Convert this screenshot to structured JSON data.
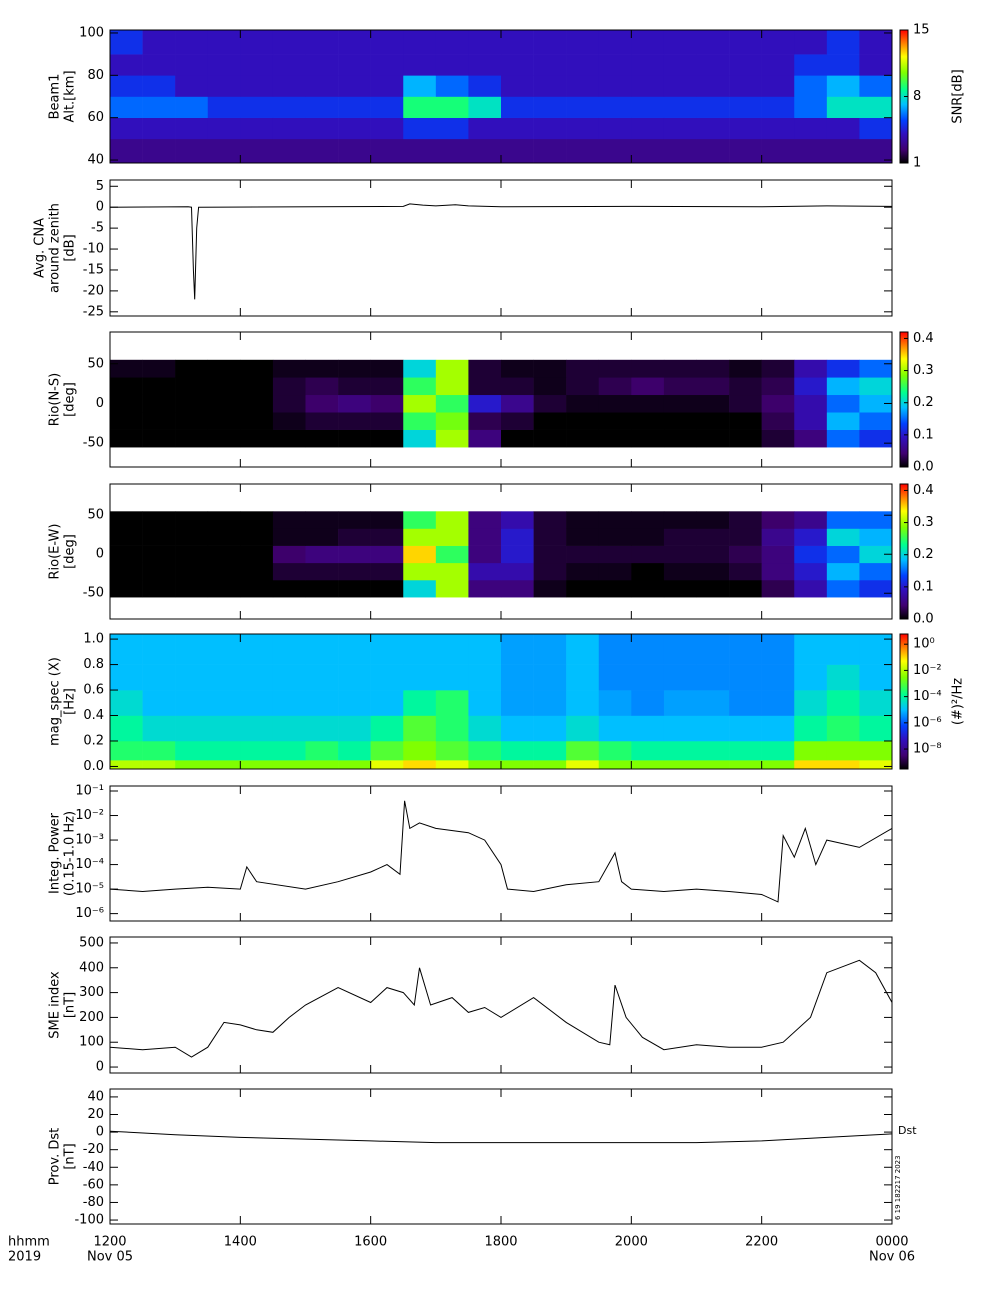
{
  "chart_data": [
    {
      "type": "heatmap",
      "ylabel": [
        "Beam1",
        "Alt.[km]"
      ],
      "xlim": [
        12,
        24
      ],
      "xticks": [
        12,
        14,
        16,
        18,
        20,
        22,
        24
      ],
      "ylim": [
        38.6,
        101.4
      ],
      "yticks": [
        40,
        60,
        80,
        100
      ],
      "colormap": "rainbow",
      "x_bins": [
        12,
        12.5,
        13,
        13.5,
        14,
        14.5,
        15,
        15.5,
        16,
        16.5,
        17,
        17.5,
        18,
        18.5,
        19,
        19.5,
        20,
        20.5,
        21,
        21.5,
        22,
        22.5,
        23,
        23.5,
        24
      ],
      "y_bins": [
        38.6,
        50,
        60,
        70,
        80,
        90,
        101.4
      ],
      "z": [
        [
          3,
          3,
          3,
          3,
          3,
          3,
          3,
          3,
          3,
          3,
          3,
          3,
          3,
          3,
          3,
          3,
          3,
          3,
          3,
          3,
          3,
          3,
          3,
          3
        ],
        [
          4,
          4,
          4,
          4,
          4,
          4,
          4,
          4,
          4,
          5,
          5,
          4,
          4,
          4,
          4,
          4,
          4,
          4,
          4,
          4,
          4,
          4,
          4,
          5
        ],
        [
          6,
          6,
          6,
          5,
          5,
          5,
          5,
          5,
          5,
          9,
          9,
          8,
          5,
          5,
          5,
          5,
          5,
          5,
          5,
          5,
          5,
          6,
          8,
          8
        ],
        [
          5,
          5,
          4,
          4,
          4,
          4,
          4,
          4,
          4,
          7,
          6,
          5,
          4,
          4,
          4,
          4,
          4,
          4,
          4,
          4,
          4,
          6,
          7,
          6
        ],
        [
          4,
          4,
          4,
          4,
          4,
          4,
          4,
          4,
          4,
          4,
          4,
          4,
          4,
          4,
          4,
          4,
          4,
          4,
          4,
          4,
          4,
          5,
          5,
          4
        ],
        [
          5,
          4,
          4,
          4,
          4,
          4,
          4,
          4,
          4,
          4,
          4,
          4,
          4,
          4,
          4,
          4,
          4,
          4,
          4,
          4,
          4,
          4,
          5,
          4
        ]
      ],
      "colorbar": {
        "label": "SNR[dB]",
        "lim": [
          1,
          15
        ],
        "ticks": [
          1,
          8,
          15
        ],
        "log": false
      }
    },
    {
      "type": "line",
      "ylabel": [
        "Avg. CNA",
        "around zenith",
        "[dB]"
      ],
      "xlim": [
        12,
        24
      ],
      "xticks": [
        12,
        14,
        16,
        18,
        20,
        22,
        24
      ],
      "ylim": [
        -26,
        6.5
      ],
      "yticks": [
        5,
        0,
        -5,
        -10,
        -15,
        -20,
        -25
      ],
      "color": "#000000",
      "x": [
        12,
        13.2,
        13.25,
        13.28,
        13.3,
        13.33,
        13.36,
        16.5,
        16.6,
        16.8,
        17,
        17.3,
        17.5,
        18,
        20,
        22,
        23,
        24
      ],
      "values": [
        0,
        0.1,
        0,
        -15,
        -22,
        -5,
        0,
        0.2,
        0.8,
        0.5,
        0.3,
        0.6,
        0.3,
        0.1,
        0.2,
        0.1,
        0.3,
        0.2
      ]
    },
    {
      "type": "heatmap",
      "ylabel": [
        "Rio(N-S)",
        "[deg]"
      ],
      "xlim": [
        12,
        24
      ],
      "xticks": [
        12,
        14,
        16,
        18,
        20,
        22,
        24
      ],
      "ylim": [
        -80,
        90
      ],
      "yticks": [
        -50,
        0,
        50
      ],
      "colormap": "rainbow",
      "x_bins": [
        12,
        12.5,
        13,
        13.5,
        14,
        14.5,
        15,
        15.5,
        16,
        16.5,
        17,
        17.5,
        18,
        18.5,
        19,
        19.5,
        20,
        20.5,
        21,
        21.5,
        22,
        22.5,
        23,
        23.5,
        24
      ],
      "y_bins": [
        -55,
        -33,
        -11,
        11,
        33,
        55
      ],
      "z": [
        [
          0,
          0,
          0,
          0,
          0,
          0,
          0,
          0,
          0,
          0.2,
          0.3,
          0.05,
          0,
          0,
          0,
          0,
          0,
          0,
          0,
          0,
          0.02,
          0.05,
          0.15,
          0.12
        ],
        [
          0,
          0,
          0,
          0,
          0,
          0.01,
          0.02,
          0.02,
          0.02,
          0.25,
          0.28,
          0.03,
          0.02,
          0,
          0,
          0,
          0,
          0,
          0,
          0,
          0.03,
          0.08,
          0.18,
          0.15
        ],
        [
          0,
          0,
          0,
          0,
          0,
          0.02,
          0.04,
          0.05,
          0.04,
          0.3,
          0.25,
          0.1,
          0.06,
          0.02,
          0.01,
          0.01,
          0.01,
          0.01,
          0.01,
          0.02,
          0.04,
          0.08,
          0.15,
          0.18
        ],
        [
          0,
          0,
          0,
          0,
          0,
          0.02,
          0.03,
          0.02,
          0.02,
          0.25,
          0.3,
          0.02,
          0.02,
          0.01,
          0.02,
          0.03,
          0.04,
          0.03,
          0.03,
          0.02,
          0.03,
          0.1,
          0.18,
          0.2
        ],
        [
          0.01,
          0.01,
          0,
          0,
          0,
          0.01,
          0.01,
          0.01,
          0.01,
          0.2,
          0.3,
          0.02,
          0.01,
          0.01,
          0.02,
          0.02,
          0.02,
          0.02,
          0.02,
          0.01,
          0.02,
          0.08,
          0.12,
          0.15
        ]
      ],
      "colorbar": {
        "label": "",
        "lim": [
          0,
          0.42
        ],
        "ticks": [
          {
            "value": 0,
            "label": "0.0"
          },
          0.1,
          0.2,
          0.3,
          0.4
        ],
        "log": false
      }
    },
    {
      "type": "heatmap",
      "ylabel": [
        "Rio(E-W)",
        "[deg]"
      ],
      "xlim": [
        12,
        24
      ],
      "xticks": [
        12,
        14,
        16,
        18,
        20,
        22,
        24
      ],
      "ylim": [
        -83,
        90
      ],
      "yticks": [
        -50,
        0,
        50
      ],
      "colormap": "rainbow",
      "x_bins": [
        12,
        12.5,
        13,
        13.5,
        14,
        14.5,
        15,
        15.5,
        16,
        16.5,
        17,
        17.5,
        18,
        18.5,
        19,
        19.5,
        20,
        20.5,
        21,
        21.5,
        22,
        22.5,
        23,
        23.5,
        24
      ],
      "y_bins": [
        -55,
        -33,
        -11,
        11,
        33,
        55
      ],
      "z": [
        [
          0,
          0,
          0,
          0,
          0,
          0,
          0,
          0,
          0,
          0.2,
          0.3,
          0.05,
          0.05,
          0.01,
          0,
          0,
          0,
          0,
          0,
          0,
          0.03,
          0.08,
          0.15,
          0.12
        ],
        [
          0,
          0,
          0,
          0,
          0,
          0.02,
          0.02,
          0.02,
          0.02,
          0.3,
          0.3,
          0.08,
          0.08,
          0.02,
          0.01,
          0.01,
          0,
          0.01,
          0.01,
          0.02,
          0.05,
          0.1,
          0.18,
          0.15
        ],
        [
          0,
          0,
          0,
          0,
          0,
          0.04,
          0.05,
          0.05,
          0.05,
          0.35,
          0.25,
          0.05,
          0.1,
          0.02,
          0.02,
          0.02,
          0.02,
          0.02,
          0.02,
          0.03,
          0.05,
          0.12,
          0.15,
          0.2
        ],
        [
          0,
          0,
          0,
          0,
          0,
          0.01,
          0.01,
          0.02,
          0.02,
          0.3,
          0.3,
          0.05,
          0.1,
          0.02,
          0.01,
          0.01,
          0.01,
          0.02,
          0.02,
          0.02,
          0.06,
          0.1,
          0.2,
          0.18
        ],
        [
          0,
          0,
          0,
          0,
          0,
          0.01,
          0.01,
          0.01,
          0.01,
          0.25,
          0.3,
          0.05,
          0.08,
          0.02,
          0.01,
          0.01,
          0.01,
          0.01,
          0.01,
          0.02,
          0.04,
          0.06,
          0.15,
          0.15
        ]
      ],
      "colorbar": {
        "label": "",
        "lim": [
          0,
          0.42
        ],
        "ticks": [
          {
            "value": 0,
            "label": "0.0"
          },
          0.1,
          0.2,
          0.3,
          0.4
        ],
        "log": false
      }
    },
    {
      "type": "heatmap",
      "ylabel": [
        "mag_spec (X)",
        "[Hz]"
      ],
      "xlim": [
        12,
        24
      ],
      "xticks": [
        12,
        14,
        16,
        18,
        20,
        22,
        24
      ],
      "ylim": [
        -0.02,
        1.04
      ],
      "yticks": [
        {
          "value": 0,
          "label": "0.0"
        },
        0.2,
        0.4,
        0.6,
        0.8,
        {
          "value": 1,
          "label": "1.0"
        }
      ],
      "colormap": "rainbow",
      "x_bins": [
        12,
        12.5,
        13,
        13.5,
        14,
        14.5,
        15,
        15.5,
        16,
        16.5,
        17,
        17.5,
        18,
        18.5,
        19,
        19.5,
        20,
        20.5,
        21,
        21.5,
        22,
        22.5,
        23,
        23.5,
        24
      ],
      "y_bins": [
        -0.02,
        0.05,
        0.2,
        0.4,
        0.6,
        0.8,
        1.04
      ],
      "z": [
        [
          0.01,
          0.01,
          0.003,
          0.003,
          0.003,
          0.003,
          0.003,
          0.003,
          0.03,
          0.1,
          0.03,
          0.003,
          0.003,
          0.003,
          0.03,
          0.003,
          0.003,
          0.003,
          0.003,
          0.003,
          0.003,
          0.1,
          0.1,
          0.03
        ],
        [
          0.0003,
          0.0003,
          0.0001,
          0.0001,
          0.0001,
          0.0001,
          0.0003,
          0.0001,
          0.001,
          0.003,
          0.001,
          0.0003,
          0.0001,
          0.0001,
          0.001,
          0.0003,
          0.0001,
          0.0001,
          0.0001,
          0.0001,
          0.0001,
          0.003,
          0.003,
          0.003
        ],
        [
          0.0001,
          3e-05,
          3e-05,
          3e-05,
          3e-05,
          3e-05,
          3e-05,
          3e-05,
          0.0001,
          0.001,
          0.0003,
          3e-05,
          1e-05,
          1e-05,
          3e-05,
          1e-05,
          1e-05,
          1e-05,
          1e-05,
          1e-05,
          1e-05,
          0.0001,
          0.0003,
          0.0001
        ],
        [
          3e-05,
          1e-05,
          1e-05,
          1e-05,
          1e-05,
          1e-05,
          1e-05,
          1e-05,
          1e-05,
          0.0001,
          0.0003,
          1e-05,
          5e-06,
          5e-06,
          1e-05,
          5e-06,
          3e-06,
          5e-06,
          5e-06,
          3e-06,
          3e-06,
          3e-05,
          0.0001,
          3e-05
        ],
        [
          1e-05,
          1e-05,
          1e-05,
          1e-05,
          1e-05,
          1e-05,
          1e-05,
          1e-05,
          1e-05,
          1e-05,
          1e-05,
          1e-05,
          5e-06,
          5e-06,
          1e-05,
          3e-06,
          3e-06,
          3e-06,
          3e-06,
          3e-06,
          3e-06,
          1e-05,
          3e-05,
          1e-05
        ],
        [
          1e-05,
          1e-05,
          1e-05,
          1e-05,
          1e-05,
          1e-05,
          1e-05,
          1e-05,
          1e-05,
          1e-05,
          1e-05,
          1e-05,
          5e-06,
          5e-06,
          1e-05,
          3e-06,
          3e-06,
          3e-06,
          3e-06,
          3e-06,
          3e-06,
          1e-05,
          1e-05,
          1e-05
        ]
      ],
      "colorbar": {
        "label": "(#)²/Hz",
        "lim": [
          3e-10,
          6
        ],
        "log": true,
        "ticks": [
          {
            "value": 1,
            "label": "10⁰"
          },
          {
            "value": 0.01,
            "label": "10⁻²"
          },
          {
            "value": 0.0001,
            "label": "10⁻⁴"
          },
          {
            "value": 1e-06,
            "label": "10⁻⁶"
          },
          {
            "value": 1e-08,
            "label": "10⁻⁸"
          }
        ]
      }
    },
    {
      "type": "line",
      "ylabel": [
        "Integ. Power",
        "(0.15-1.0 Hz)"
      ],
      "xlim": [
        12,
        24
      ],
      "xticks": [
        12,
        14,
        16,
        18,
        20,
        22,
        24
      ],
      "ylim": [
        5e-07,
        0.16
      ],
      "ylog": true,
      "color": "#000000",
      "yticks": [
        {
          "value": 1e-06,
          "label": "10⁻⁶"
        },
        {
          "value": 1e-05,
          "label": "10⁻⁵"
        },
        {
          "value": 0.0001,
          "label": "10⁻⁴"
        },
        {
          "value": 0.001,
          "label": "10⁻³"
        },
        {
          "value": 0.01,
          "label": "10⁻²"
        },
        {
          "value": 0.1,
          "label": "10⁻¹"
        }
      ],
      "x": [
        12,
        12.5,
        13,
        13.5,
        14,
        14.1,
        14.25,
        15,
        15.5,
        16,
        16.25,
        16.45,
        16.52,
        16.6,
        16.75,
        17,
        17.5,
        17.75,
        18,
        18.1,
        18.5,
        19,
        19.5,
        19.75,
        19.85,
        20,
        20.5,
        21,
        21.5,
        22,
        22.25,
        22.33,
        22.5,
        22.67,
        22.83,
        23,
        23.5,
        24
      ],
      "values": [
        1e-05,
        8e-06,
        1e-05,
        1.2e-05,
        1e-05,
        8e-05,
        2e-05,
        1e-05,
        2e-05,
        5e-05,
        0.0001,
        4e-05,
        0.04,
        0.003,
        0.005,
        0.003,
        0.002,
        0.001,
        0.0001,
        1e-05,
        8e-06,
        1.5e-05,
        2e-05,
        0.0003,
        2e-05,
        1e-05,
        8e-06,
        1e-05,
        8e-06,
        6e-06,
        3e-06,
        0.0015,
        0.0002,
        0.003,
        0.0001,
        0.001,
        0.0005,
        0.003
      ]
    },
    {
      "type": "line",
      "ylabel": [
        "SME index",
        "[nT]"
      ],
      "xlim": [
        12,
        24
      ],
      "xticks": [
        12,
        14,
        16,
        18,
        20,
        22,
        24
      ],
      "ylim": [
        -24,
        524
      ],
      "yticks": [
        0,
        100,
        200,
        300,
        400,
        500
      ],
      "color": "#000000",
      "x": [
        12,
        12.5,
        13,
        13.25,
        13.5,
        13.75,
        14,
        14.25,
        14.5,
        14.75,
        15,
        15.5,
        16,
        16.25,
        16.5,
        16.67,
        16.75,
        16.92,
        17.25,
        17.5,
        17.75,
        18,
        18.5,
        19,
        19.5,
        19.67,
        19.75,
        19.92,
        20.17,
        20.5,
        21,
        21.5,
        22,
        22.33,
        22.75,
        23,
        23.5,
        23.75,
        24
      ],
      "values": [
        80,
        70,
        80,
        40,
        80,
        180,
        170,
        150,
        140,
        200,
        250,
        320,
        260,
        320,
        300,
        250,
        400,
        250,
        280,
        220,
        240,
        200,
        280,
        180,
        100,
        90,
        330,
        200,
        120,
        70,
        90,
        80,
        80,
        100,
        200,
        380,
        430,
        380,
        260
      ]
    },
    {
      "type": "line",
      "ylabel": [
        "Prov. Dst",
        "[nT]"
      ],
      "xlim": [
        12,
        24
      ],
      "xticks": [
        {
          "value": 12,
          "label": "1200"
        },
        {
          "value": 14,
          "label": "1400"
        },
        {
          "value": 16,
          "label": "1600"
        },
        {
          "value": 18,
          "label": "1800"
        },
        {
          "value": 20,
          "label": "2000"
        },
        {
          "value": 22,
          "label": "2200"
        },
        {
          "value": 24,
          "label": "0000"
        }
      ],
      "x_labels": [
        "hhmm",
        "2019"
      ],
      "dates": [
        "Nov 05",
        "Nov 06"
      ],
      "annotation": "Dst",
      "stamp": "6 19 182217 2023",
      "ylim": [
        -104.5,
        49
      ],
      "yticks": [
        40,
        20,
        0,
        -20,
        -40,
        -60,
        -80,
        -100
      ],
      "color": "#000000",
      "x": [
        12,
        13,
        14,
        15,
        16,
        17,
        18,
        19,
        20,
        21,
        22,
        23,
        24
      ],
      "values": [
        1,
        -3,
        -6,
        -8,
        -10,
        -12,
        -12,
        -12,
        -12,
        -12,
        -10,
        -6,
        -2
      ]
    }
  ]
}
